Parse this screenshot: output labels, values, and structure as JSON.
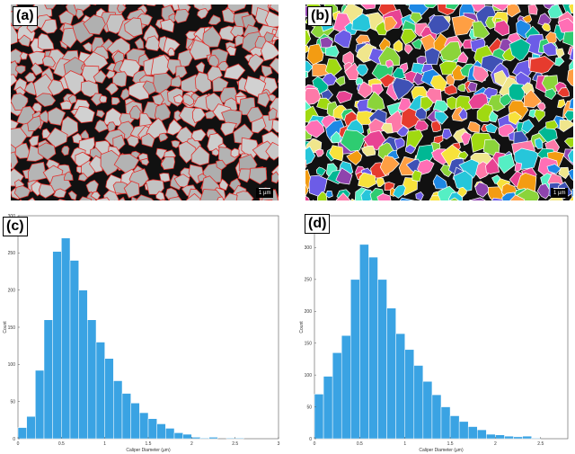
{
  "panels": {
    "a": {
      "label": "(a)",
      "scale_text": "1 µm"
    },
    "b": {
      "label": "(b)",
      "scale_text": "1 µm"
    },
    "c": {
      "label": "(c)"
    },
    "d": {
      "label": "(d)"
    }
  },
  "colors": {
    "bar_fill": "#3aa3e3",
    "bar_stroke": "#ffffff",
    "grain_gray": "#bdbdbd",
    "grain_boundary_red": "#e2312d"
  },
  "chart_data": [
    {
      "panel": "c",
      "type": "bar",
      "bin_width": 0.1,
      "bin_starts": [
        0.0,
        0.1,
        0.2,
        0.3,
        0.4,
        0.5,
        0.6,
        0.7,
        0.8,
        0.9,
        1.0,
        1.1,
        1.2,
        1.3,
        1.4,
        1.5,
        1.6,
        1.7,
        1.8,
        1.9,
        2.0,
        2.1,
        2.2,
        2.3,
        2.4,
        2.5
      ],
      "values": [
        15,
        30,
        92,
        160,
        252,
        270,
        240,
        200,
        160,
        130,
        108,
        78,
        61,
        48,
        35,
        27,
        20,
        14,
        8,
        6,
        2,
        1,
        2,
        0,
        1,
        1
      ],
      "xlabel": "Caliper Diameter (µm)",
      "ylabel": "Count",
      "xlim": [
        0,
        3
      ],
      "ylim": [
        0,
        300
      ],
      "xticks": [
        "0",
        "0.5",
        "1",
        "1.5",
        "2",
        "2.5",
        "3"
      ],
      "yticks": [
        "0",
        "50",
        "100",
        "150",
        "200",
        "250",
        "300"
      ]
    },
    {
      "panel": "d",
      "type": "bar",
      "bin_width": 0.1,
      "bin_starts": [
        0.0,
        0.1,
        0.2,
        0.3,
        0.4,
        0.5,
        0.6,
        0.7,
        0.8,
        0.9,
        1.0,
        1.1,
        1.2,
        1.3,
        1.4,
        1.5,
        1.6,
        1.7,
        1.8,
        1.9,
        2.0,
        2.1,
        2.2,
        2.3,
        2.4,
        2.5
      ],
      "values": [
        70,
        98,
        135,
        162,
        250,
        305,
        285,
        250,
        205,
        165,
        140,
        115,
        90,
        69,
        50,
        36,
        27,
        19,
        14,
        7,
        6,
        4,
        3,
        4,
        1,
        0
      ],
      "xlabel": "Caliper Diameter (µm)",
      "ylabel": "Count",
      "xlim": [
        0,
        2.8
      ],
      "ylim": [
        0,
        350
      ],
      "xticks": [
        "0",
        "0.5",
        "1",
        "1.5",
        "2",
        "2.5"
      ],
      "yticks": [
        "0",
        "50",
        "100",
        "150",
        "200",
        "250",
        "300",
        "350"
      ]
    }
  ]
}
